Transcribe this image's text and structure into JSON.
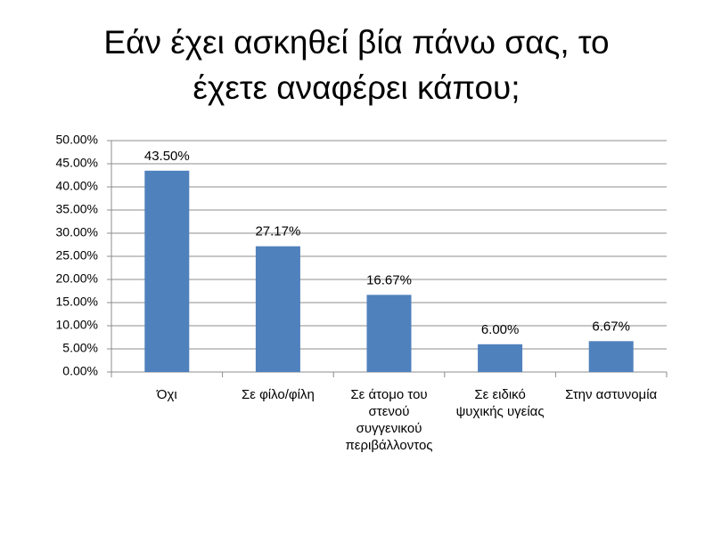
{
  "chart_data": {
    "type": "bar",
    "title": [
      "Εάν έχει ασκηθεί βία πάνω σας, το",
      "έχετε αναφέρει κάπου;"
    ],
    "categories": [
      "Όχι",
      "Σε φίλο/φίλη",
      "Σε άτομο του στενού συγγενικού περιβάλλοντος",
      "Σε ειδικό ψυχικής υγείας",
      "Στην αστυνομία"
    ],
    "values": [
      43.5,
      27.17,
      16.67,
      6.0,
      6.67
    ],
    "value_labels": [
      "43.50%",
      "27.17%",
      "16.67%",
      "6.00%",
      "6.67%"
    ],
    "color": "#4f81bd",
    "ylim": [
      0,
      50
    ],
    "yticks": [
      {
        "value": 0,
        "label": "0.00%"
      },
      {
        "value": 5,
        "label": "5.00%"
      },
      {
        "value": 10,
        "label": "10.00%"
      },
      {
        "value": 15,
        "label": "15.00%"
      },
      {
        "value": 20,
        "label": "20.00%"
      },
      {
        "value": 25,
        "label": "25.00%"
      },
      {
        "value": 30,
        "label": "30.00%"
      },
      {
        "value": 35,
        "label": "35.00%"
      },
      {
        "value": 40,
        "label": "40.00%"
      },
      {
        "value": 45,
        "label": "45.00%"
      },
      {
        "value": 50,
        "label": "50.00%"
      }
    ],
    "grid": true
  }
}
